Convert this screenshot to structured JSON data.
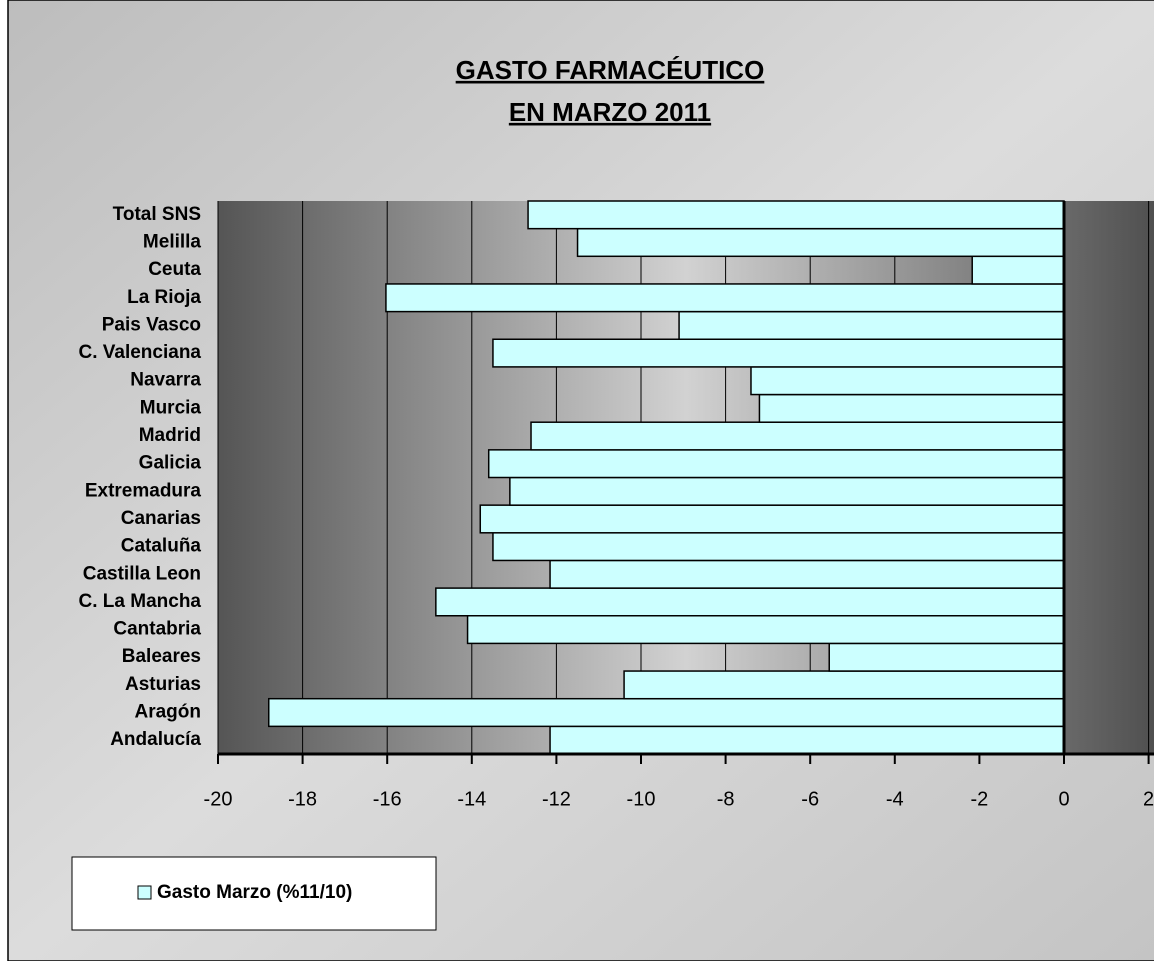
{
  "chart_data": {
    "type": "bar",
    "orientation": "horizontal",
    "title": [
      "GASTO FARMACÉUTICO",
      "EN MARZO 2011"
    ],
    "categories": [
      "Andalucía",
      "Aragón",
      "Asturias",
      "Baleares",
      "Cantabria",
      "C. La Mancha",
      "Castilla Leon",
      "Cataluña",
      "Canarias",
      "Extremadura",
      "Galicia",
      "Madrid",
      "Murcia",
      "Navarra",
      "C. Valenciana",
      "Pais Vasco",
      "La Rioja",
      "Ceuta",
      "Melilla",
      "Total SNS"
    ],
    "series": [
      {
        "name": "Gasto Marzo (%11/10)",
        "color": "#ccffff",
        "values": [
          -12.15,
          -18.8,
          -10.4,
          -5.55,
          -14.1,
          -14.85,
          -12.15,
          -13.5,
          -13.8,
          -13.1,
          -13.6,
          -12.6,
          -7.2,
          -7.4,
          -13.5,
          -9.1,
          -16.03,
          -2.17,
          -11.5,
          -12.67
        ]
      }
    ],
    "xlim": [
      -20,
      2
    ],
    "xticks": [
      -20,
      -18,
      -16,
      -14,
      -12,
      -10,
      -8,
      -6,
      -4,
      -2,
      0,
      2
    ],
    "grid": true
  }
}
